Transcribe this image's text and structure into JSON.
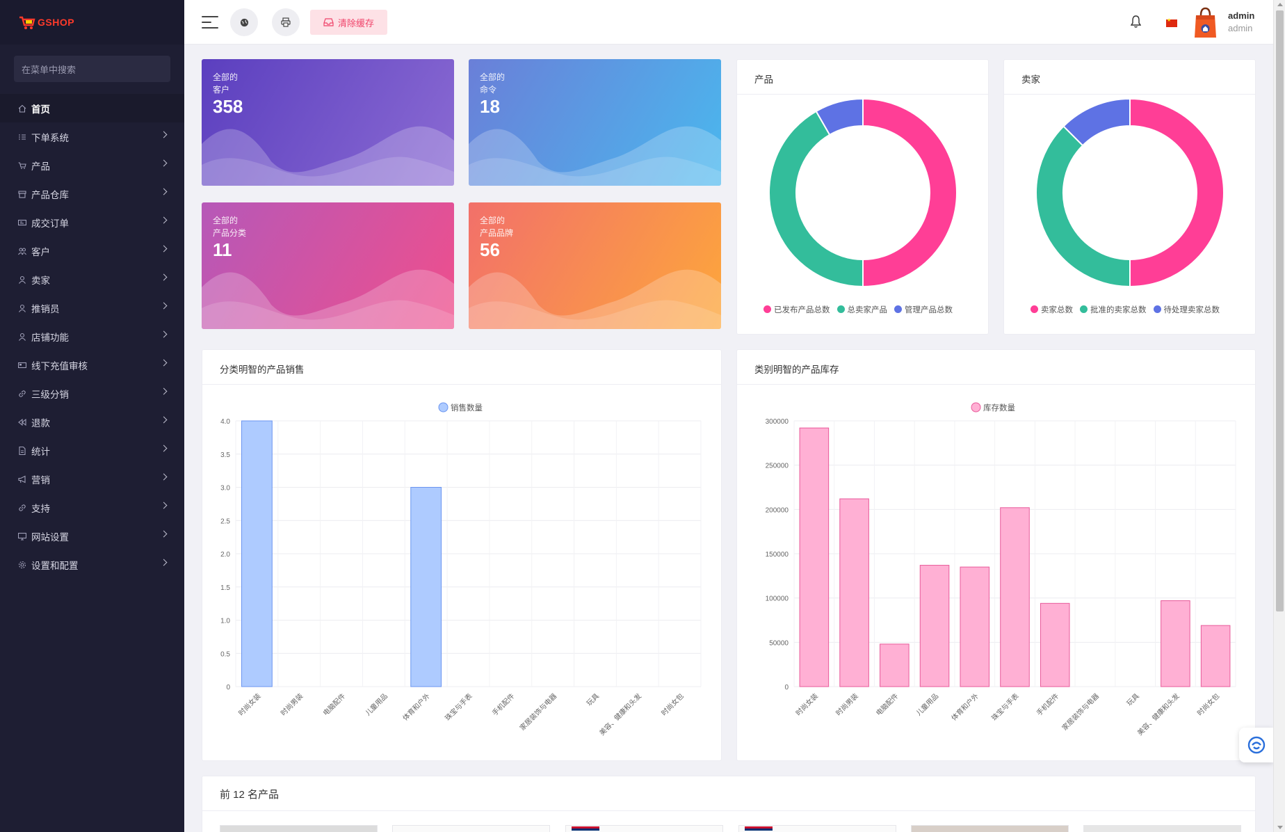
{
  "sidebar": {
    "logo_text": "GSHOP",
    "search_placeholder": "在菜单中搜索",
    "items": [
      {
        "label": "首页",
        "icon": "home-icon",
        "active": true
      },
      {
        "label": "下单系统",
        "icon": "list-icon"
      },
      {
        "label": "产品",
        "icon": "cart-icon"
      },
      {
        "label": "产品仓库",
        "icon": "archive-icon"
      },
      {
        "label": "成交订单",
        "icon": "order-icon"
      },
      {
        "label": "客户",
        "icon": "users-icon"
      },
      {
        "label": "卖家",
        "icon": "user-icon"
      },
      {
        "label": "推销员",
        "icon": "user-icon"
      },
      {
        "label": "店铺功能",
        "icon": "user-icon"
      },
      {
        "label": "线下充值审核",
        "icon": "card-icon"
      },
      {
        "label": "三级分销",
        "icon": "link-icon"
      },
      {
        "label": "退款",
        "icon": "backward-icon"
      },
      {
        "label": "统计",
        "icon": "file-icon"
      },
      {
        "label": "营销",
        "icon": "megaphone-icon"
      },
      {
        "label": "支持",
        "icon": "link-icon"
      },
      {
        "label": "网站设置",
        "icon": "monitor-icon"
      },
      {
        "label": "设置和配置",
        "icon": "gear-icon"
      }
    ]
  },
  "header": {
    "clear_cache": "清除缓存",
    "user_name": "admin",
    "user_role": "admin"
  },
  "stats": [
    {
      "line1": "全部的",
      "line2": "客户",
      "value": "358",
      "from": "#5b3fbf",
      "to": "#8b6bd3"
    },
    {
      "line1": "全部的",
      "line2": "命令",
      "value": "18",
      "from": "#6a7fd8",
      "to": "#4ab8ee"
    },
    {
      "line1": "全部的",
      "line2": "产品分类",
      "value": "11",
      "from": "#b658b8",
      "to": "#ef4f8c"
    },
    {
      "line1": "全部的",
      "line2": "产品品牌",
      "value": "56",
      "from": "#f2706a",
      "to": "#fda73b"
    }
  ],
  "donut_products": {
    "title": "产品",
    "legend": [
      "已发布产品总数",
      "总卖家产品",
      "管理产品总数"
    ]
  },
  "donut_sellers": {
    "title": "卖家",
    "legend": [
      "卖家总数",
      "批准的卖家总数",
      "待处理卖家总数"
    ]
  },
  "sales_card": {
    "title": "分类明智的产品销售"
  },
  "stock_card": {
    "title": "类别明智的产品库存"
  },
  "top_products": {
    "title": "前 12 名产品"
  },
  "colors": {
    "pink": "#ff3e96",
    "green": "#33bd9b",
    "blue": "#5e72e4",
    "sales_bar": "#aecbff",
    "sales_border": "#6b95f0",
    "stock_bar": "#ffb0d4",
    "stock_border": "#e85a9a"
  },
  "chart_data": [
    {
      "type": "pie",
      "variant": "donut",
      "title": "产品",
      "labels": [
        "已发布产品总数",
        "总卖家产品",
        "管理产品总数"
      ],
      "values": [
        50,
        41.7,
        8.3
      ],
      "colors": [
        "#ff3e96",
        "#33bd9b",
        "#5e72e4"
      ]
    },
    {
      "type": "pie",
      "variant": "donut",
      "title": "卖家",
      "labels": [
        "卖家总数",
        "批准的卖家总数",
        "待处理卖家总数"
      ],
      "values": [
        50,
        37.5,
        12.5
      ],
      "colors": [
        "#ff3e96",
        "#33bd9b",
        "#5e72e4"
      ]
    },
    {
      "type": "bar",
      "title": "分类明智的产品销售",
      "categories": [
        "时尚女装",
        "时尚男装",
        "电脑配件",
        "儿童用品",
        "体育和户外",
        "珠宝与手表",
        "手机配件",
        "家居装饰与电器",
        "玩具",
        "美容、健康和头发",
        "时尚女包"
      ],
      "series": [
        {
          "name": "销售数量",
          "values": [
            4,
            0,
            0,
            0,
            3,
            0,
            0,
            0,
            0,
            0,
            0
          ]
        }
      ],
      "ylim": [
        0,
        4
      ],
      "yticks": [
        "4.0",
        "3.5",
        "3.0",
        "2.5",
        "2.0",
        "1.5",
        "1.0",
        "0.5",
        "0"
      ],
      "legend_position": "top"
    },
    {
      "type": "bar",
      "title": "类别明智的产品库存",
      "categories": [
        "时尚女装",
        "时尚男装",
        "电脑配件",
        "儿童用品",
        "体育和户外",
        "珠宝与手表",
        "手机配件",
        "家居装饰与电器",
        "玩具",
        "美容、健康和头发",
        "时尚女包"
      ],
      "series": [
        {
          "name": "库存数量",
          "values": [
            292000,
            212000,
            48000,
            137000,
            135000,
            202000,
            94000,
            0,
            0,
            97000,
            69000
          ]
        }
      ],
      "ylim": [
        0,
        300000
      ],
      "yticks": [
        "300000",
        "250000",
        "200000",
        "150000",
        "100000",
        "50000",
        "0"
      ],
      "legend_position": "top"
    }
  ]
}
